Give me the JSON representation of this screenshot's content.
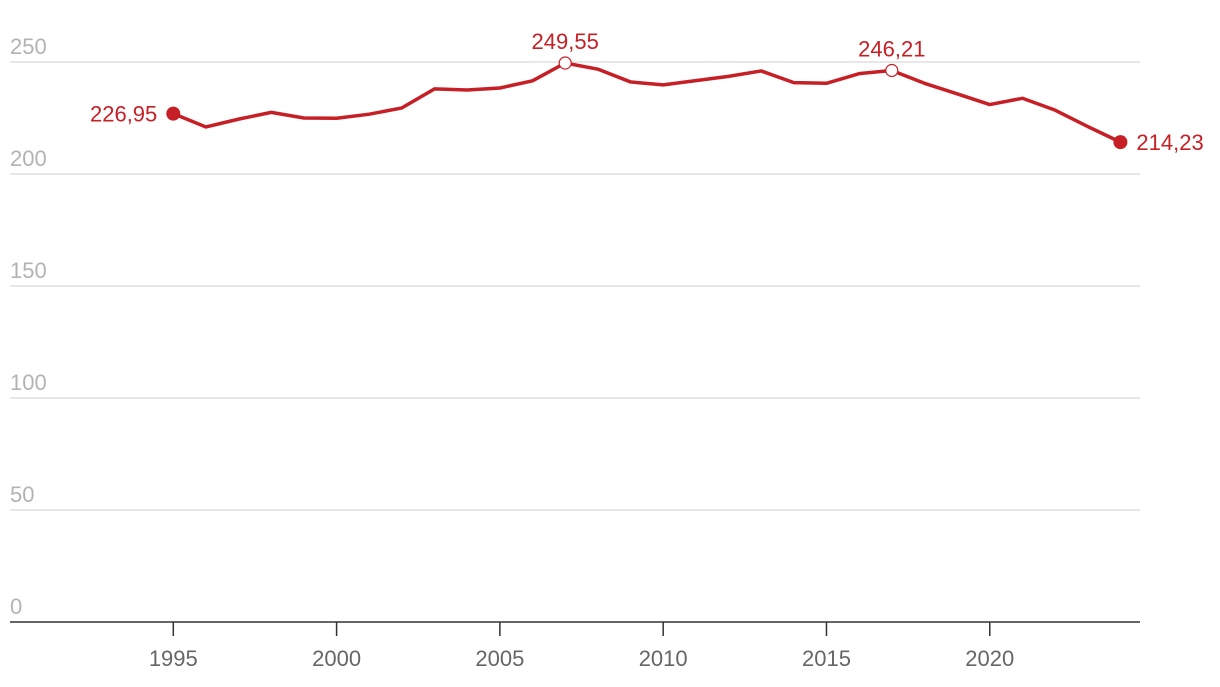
{
  "chart_data": {
    "type": "line",
    "title": "",
    "xlabel": "",
    "ylabel": "",
    "xlim": [
      1990.0,
      2024.6
    ],
    "ylim": [
      0,
      250
    ],
    "y_ticks": [
      0,
      50,
      100,
      150,
      200,
      250
    ],
    "y_tick_labels": [
      "0",
      "50",
      "100",
      "150",
      "200",
      "250"
    ],
    "x_ticks": [
      1995,
      2000,
      2005,
      2010,
      2015,
      2020
    ],
    "x_tick_labels": [
      "1995",
      "2000",
      "2005",
      "2010",
      "2015",
      "2020"
    ],
    "grid": true,
    "legend": "none",
    "colors": {
      "series": "#c62026",
      "grid": "#e0e0e0",
      "axis": "#333333",
      "y_tick_text": "#b3b3b3",
      "x_tick_text": "#666666"
    },
    "series": [
      {
        "x": [
          1995,
          1996,
          1997,
          1998,
          1999,
          2000,
          2001,
          2002,
          2003,
          2004,
          2005,
          2006,
          2007,
          2008,
          2009,
          2010,
          2011,
          2012,
          2013,
          2014,
          2015,
          2016,
          2017,
          2018,
          2019,
          2020,
          2021,
          2022,
          2023,
          2024
        ],
        "y": [
          226.95,
          221.0,
          224.5,
          227.5,
          225.0,
          224.9,
          226.7,
          229.5,
          238.0,
          237.5,
          238.4,
          241.6,
          249.55,
          246.8,
          241.1,
          239.8,
          241.7,
          243.6,
          246.0,
          240.8,
          240.5,
          244.8,
          246.21,
          240.5,
          235.8,
          231.0,
          233.8,
          228.5,
          221.2,
          214.23
        ]
      }
    ],
    "annotations": [
      {
        "x": 1995,
        "y": 226.95,
        "label": "226,95",
        "marker": "filled",
        "anchor": "left"
      },
      {
        "x": 2007,
        "y": 249.55,
        "label": "249,55",
        "marker": "hollow",
        "anchor": "top"
      },
      {
        "x": 2017,
        "y": 246.21,
        "label": "246,21",
        "marker": "hollow",
        "anchor": "top"
      },
      {
        "x": 2024,
        "y": 214.23,
        "label": "214,23",
        "marker": "filled",
        "anchor": "right"
      }
    ]
  }
}
